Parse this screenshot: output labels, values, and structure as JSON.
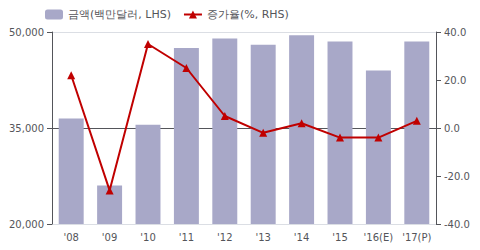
{
  "chart_data": {
    "type": "bar",
    "categories": [
      "'08",
      "'09",
      "'10",
      "'11",
      "'12",
      "'13",
      "'14",
      "'15",
      "'16(E)",
      "'17(P)"
    ],
    "series": [
      {
        "name": "금액(백만달러, LHS)",
        "type": "bar",
        "color": "#a8a8c8",
        "values": [
          36500,
          26000,
          35500,
          47500,
          49000,
          48000,
          49500,
          48500,
          44000,
          48500
        ]
      },
      {
        "name": "증가율(%, RHS)",
        "type": "line",
        "axis": "y2",
        "color": "#c00000",
        "marker": "triangle",
        "values": [
          22.0,
          -26.0,
          35.0,
          25.0,
          5.0,
          -2.0,
          2.0,
          -4.0,
          -4.0,
          3.0
        ]
      }
    ],
    "ylim": [
      20000,
      50000
    ],
    "yticks": [
      {
        "value": 20000,
        "label": "20,000"
      },
      {
        "value": 35000,
        "label": "35,000"
      },
      {
        "value": 50000,
        "label": "50,000"
      }
    ],
    "y2lim": [
      -40.0,
      40.0
    ],
    "y2ticks": [
      {
        "value": -40.0,
        "label": "-40.0"
      },
      {
        "value": -20.0,
        "label": "-20.0"
      },
      {
        "value": 0.0,
        "label": "0.0"
      },
      {
        "value": 20.0,
        "label": "20.0"
      },
      {
        "value": 40.0,
        "label": "40.0"
      }
    ],
    "grid": true,
    "legend": "upper left"
  }
}
